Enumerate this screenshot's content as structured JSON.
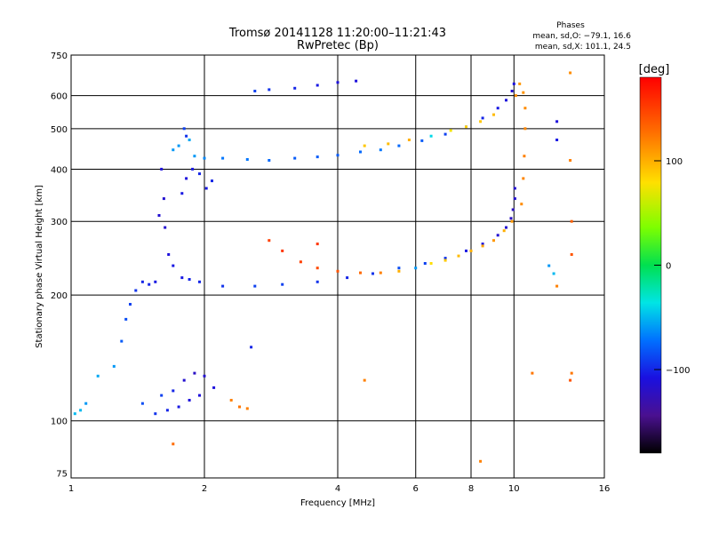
{
  "chart_data": {
    "type": "scatter",
    "title": "Tromsø 20141128 11:20:00–11:21:43",
    "subtitle": "RwPretec (Bp)",
    "xlabel": "Frequency [MHz]",
    "ylabel": "Stationary phase Virtual Height [km]",
    "x_scale": "log",
    "y_scale": "log",
    "xlim": [
      1,
      16
    ],
    "ylim": [
      73,
      750
    ],
    "x_ticks": [
      1,
      2,
      4,
      6,
      8,
      10,
      16
    ],
    "y_ticks": [
      75,
      100,
      200,
      300,
      400,
      500,
      600,
      750
    ],
    "grid": true,
    "phases_header": "Phases",
    "phases_o": "mean, sd,O: −79.1, 16.6",
    "phases_x": "mean, sd,X: 101.1, 24.5",
    "colorbar": {
      "label": "[deg]",
      "range": [
        -180,
        180
      ],
      "ticks": [
        100,
        0,
        -100
      ]
    },
    "series": [
      {
        "points": [
          {
            "x": 1.02,
            "y": 104,
            "c": -50
          },
          {
            "x": 1.05,
            "y": 106,
            "c": -50
          },
          {
            "x": 1.08,
            "y": 110,
            "c": -60
          },
          {
            "x": 1.15,
            "y": 128,
            "c": -55
          },
          {
            "x": 1.25,
            "y": 135,
            "c": -60
          },
          {
            "x": 1.3,
            "y": 155,
            "c": -80
          },
          {
            "x": 1.33,
            "y": 175,
            "c": -85
          },
          {
            "x": 1.36,
            "y": 190,
            "c": -90
          },
          {
            "x": 1.4,
            "y": 205,
            "c": -95
          },
          {
            "x": 1.45,
            "y": 215,
            "c": -100
          },
          {
            "x": 1.5,
            "y": 212,
            "c": -100
          },
          {
            "x": 1.55,
            "y": 215,
            "c": -105
          },
          {
            "x": 1.58,
            "y": 310,
            "c": -115
          },
          {
            "x": 1.6,
            "y": 400,
            "c": -110
          },
          {
            "x": 1.62,
            "y": 340,
            "c": -115
          },
          {
            "x": 1.63,
            "y": 290,
            "c": -115
          },
          {
            "x": 1.66,
            "y": 250,
            "c": -110
          },
          {
            "x": 1.7,
            "y": 235,
            "c": -105
          },
          {
            "x": 1.78,
            "y": 220,
            "c": -105
          },
          {
            "x": 1.85,
            "y": 218,
            "c": -100
          },
          {
            "x": 1.95,
            "y": 215,
            "c": -100
          },
          {
            "x": 2.2,
            "y": 210,
            "c": -95
          },
          {
            "x": 2.6,
            "y": 210,
            "c": -90
          },
          {
            "x": 3.0,
            "y": 212,
            "c": -90
          },
          {
            "x": 3.6,
            "y": 215,
            "c": -95
          },
          {
            "x": 4.2,
            "y": 220,
            "c": -100
          },
          {
            "x": 4.8,
            "y": 225,
            "c": -95
          },
          {
            "x": 5.5,
            "y": 232,
            "c": -85
          },
          {
            "x": 6.3,
            "y": 238,
            "c": -90
          },
          {
            "x": 7.0,
            "y": 245,
            "c": -95
          },
          {
            "x": 7.8,
            "y": 255,
            "c": -105
          },
          {
            "x": 8.5,
            "y": 265,
            "c": -110
          },
          {
            "x": 9.2,
            "y": 278,
            "c": -115
          },
          {
            "x": 9.6,
            "y": 290,
            "c": -115
          },
          {
            "x": 9.85,
            "y": 305,
            "c": -120
          },
          {
            "x": 9.95,
            "y": 320,
            "c": -120
          },
          {
            "x": 10.05,
            "y": 340,
            "c": -115
          },
          {
            "x": 10.05,
            "y": 360,
            "c": -115
          },
          {
            "x": 1.7,
            "y": 445,
            "c": -60
          },
          {
            "x": 1.75,
            "y": 455,
            "c": -60
          },
          {
            "x": 1.85,
            "y": 470,
            "c": -55
          },
          {
            "x": 1.9,
            "y": 430,
            "c": -60
          },
          {
            "x": 2.0,
            "y": 425,
            "c": -65
          },
          {
            "x": 2.2,
            "y": 425,
            "c": -70
          },
          {
            "x": 2.5,
            "y": 422,
            "c": -70
          },
          {
            "x": 2.8,
            "y": 420,
            "c": -75
          },
          {
            "x": 3.2,
            "y": 425,
            "c": -80
          },
          {
            "x": 3.6,
            "y": 428,
            "c": -80
          },
          {
            "x": 4.0,
            "y": 432,
            "c": -80
          },
          {
            "x": 4.5,
            "y": 440,
            "c": -75
          },
          {
            "x": 5.0,
            "y": 445,
            "c": -70
          },
          {
            "x": 5.5,
            "y": 455,
            "c": -75
          },
          {
            "x": 6.2,
            "y": 468,
            "c": -80
          },
          {
            "x": 7.0,
            "y": 485,
            "c": -90
          },
          {
            "x": 7.8,
            "y": 505,
            "c": -95
          },
          {
            "x": 8.5,
            "y": 530,
            "c": -100
          },
          {
            "x": 9.2,
            "y": 560,
            "c": -105
          },
          {
            "x": 9.6,
            "y": 585,
            "c": -110
          },
          {
            "x": 9.9,
            "y": 615,
            "c": -115
          },
          {
            "x": 10.0,
            "y": 640,
            "c": -110
          },
          {
            "x": 1.78,
            "y": 350,
            "c": -105
          },
          {
            "x": 1.82,
            "y": 380,
            "c": -110
          },
          {
            "x": 1.88,
            "y": 400,
            "c": -105
          },
          {
            "x": 1.95,
            "y": 390,
            "c": -100
          },
          {
            "x": 2.02,
            "y": 360,
            "c": -105
          },
          {
            "x": 2.08,
            "y": 375,
            "c": -100
          },
          {
            "x": 1.8,
            "y": 500,
            "c": -90
          },
          {
            "x": 1.82,
            "y": 480,
            "c": -95
          },
          {
            "x": 2.6,
            "y": 615,
            "c": -90
          },
          {
            "x": 2.8,
            "y": 620,
            "c": -95
          },
          {
            "x": 3.2,
            "y": 625,
            "c": -100
          },
          {
            "x": 3.6,
            "y": 635,
            "c": -105
          },
          {
            "x": 4.0,
            "y": 645,
            "c": -110
          },
          {
            "x": 4.4,
            "y": 650,
            "c": -110
          },
          {
            "x": 1.45,
            "y": 110,
            "c": -85
          },
          {
            "x": 1.55,
            "y": 104,
            "c": -95
          },
          {
            "x": 1.65,
            "y": 106,
            "c": -100
          },
          {
            "x": 1.75,
            "y": 108,
            "c": -105
          },
          {
            "x": 1.85,
            "y": 112,
            "c": -110
          },
          {
            "x": 1.95,
            "y": 115,
            "c": -110
          },
          {
            "x": 1.8,
            "y": 125,
            "c": -115
          },
          {
            "x": 1.9,
            "y": 130,
            "c": -120
          },
          {
            "x": 2.0,
            "y": 128,
            "c": -115
          },
          {
            "x": 2.1,
            "y": 120,
            "c": -110
          },
          {
            "x": 1.7,
            "y": 118,
            "c": -100
          },
          {
            "x": 1.6,
            "y": 115,
            "c": -90
          },
          {
            "x": 2.3,
            "y": 112,
            "c": 120
          },
          {
            "x": 2.4,
            "y": 108,
            "c": 125
          },
          {
            "x": 2.5,
            "y": 107,
            "c": 120
          },
          {
            "x": 2.8,
            "y": 270,
            "c": 150
          },
          {
            "x": 3.0,
            "y": 255,
            "c": 155
          },
          {
            "x": 3.3,
            "y": 240,
            "c": 150
          },
          {
            "x": 3.6,
            "y": 232,
            "c": 145
          },
          {
            "x": 4.0,
            "y": 228,
            "c": 140
          },
          {
            "x": 4.5,
            "y": 226,
            "c": 130
          },
          {
            "x": 5.0,
            "y": 226,
            "c": 120
          },
          {
            "x": 5.5,
            "y": 228,
            "c": 100
          },
          {
            "x": 6.0,
            "y": 232,
            "c": -60
          },
          {
            "x": 6.5,
            "y": 238,
            "c": 80
          },
          {
            "x": 7.0,
            "y": 242,
            "c": 90
          },
          {
            "x": 7.5,
            "y": 248,
            "c": 95
          },
          {
            "x": 8.0,
            "y": 255,
            "c": 100
          },
          {
            "x": 8.5,
            "y": 262,
            "c": 105
          },
          {
            "x": 9.0,
            "y": 270,
            "c": 110
          },
          {
            "x": 9.5,
            "y": 285,
            "c": 100
          },
          {
            "x": 9.9,
            "y": 300,
            "c": 110
          },
          {
            "x": 10.4,
            "y": 330,
            "c": 115
          },
          {
            "x": 10.5,
            "y": 380,
            "c": 118
          },
          {
            "x": 10.55,
            "y": 430,
            "c": 120
          },
          {
            "x": 10.6,
            "y": 500,
            "c": 118
          },
          {
            "x": 10.6,
            "y": 560,
            "c": 115
          },
          {
            "x": 10.5,
            "y": 610,
            "c": 112
          },
          {
            "x": 10.3,
            "y": 640,
            "c": 110
          },
          {
            "x": 10.1,
            "y": 600,
            "c": 115
          },
          {
            "x": 4.6,
            "y": 455,
            "c": 90
          },
          {
            "x": 5.2,
            "y": 460,
            "c": 95
          },
          {
            "x": 5.8,
            "y": 470,
            "c": 100
          },
          {
            "x": 6.5,
            "y": 480,
            "c": -40
          },
          {
            "x": 7.2,
            "y": 495,
            "c": 75
          },
          {
            "x": 7.8,
            "y": 505,
            "c": 85
          },
          {
            "x": 8.4,
            "y": 520,
            "c": 90
          },
          {
            "x": 9.0,
            "y": 540,
            "c": 95
          },
          {
            "x": 12.0,
            "y": 235,
            "c": -60
          },
          {
            "x": 12.3,
            "y": 225,
            "c": -50
          },
          {
            "x": 12.5,
            "y": 210,
            "c": 120
          },
          {
            "x": 13.4,
            "y": 680,
            "c": 115
          },
          {
            "x": 13.4,
            "y": 420,
            "c": 120
          },
          {
            "x": 13.5,
            "y": 300,
            "c": 135
          },
          {
            "x": 13.5,
            "y": 250,
            "c": 140
          },
          {
            "x": 13.5,
            "y": 130,
            "c": 125
          },
          {
            "x": 13.4,
            "y": 125,
            "c": 140
          },
          {
            "x": 12.5,
            "y": 520,
            "c": -110
          },
          {
            "x": 12.5,
            "y": 470,
            "c": -105
          },
          {
            "x": 11.0,
            "y": 130,
            "c": 125
          },
          {
            "x": 8.4,
            "y": 80,
            "c": 120
          },
          {
            "x": 4.6,
            "y": 125,
            "c": 120
          },
          {
            "x": 1.7,
            "y": 88,
            "c": 130
          },
          {
            "x": 2.55,
            "y": 150,
            "c": -100
          },
          {
            "x": 3.6,
            "y": 265,
            "c": 155
          }
        ]
      }
    ]
  }
}
